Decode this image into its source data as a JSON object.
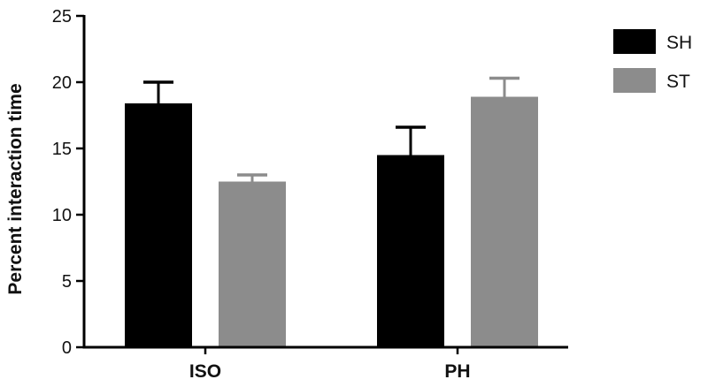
{
  "chart_data": {
    "type": "bar",
    "categories": [
      "ISO",
      "PH"
    ],
    "series": [
      {
        "name": "SH",
        "color": "#000000",
        "values": [
          18.4,
          14.5
        ],
        "errors": [
          1.6,
          2.1
        ]
      },
      {
        "name": "ST",
        "color": "#8c8c8c",
        "values": [
          12.5,
          18.9
        ],
        "errors": [
          0.5,
          1.4
        ]
      }
    ],
    "xlabel": "",
    "ylabel": "Percent interaction time",
    "ylim": [
      0,
      25
    ],
    "yticks": [
      0,
      5,
      10,
      15,
      20,
      25
    ],
    "legend": "right",
    "grid": false
  }
}
